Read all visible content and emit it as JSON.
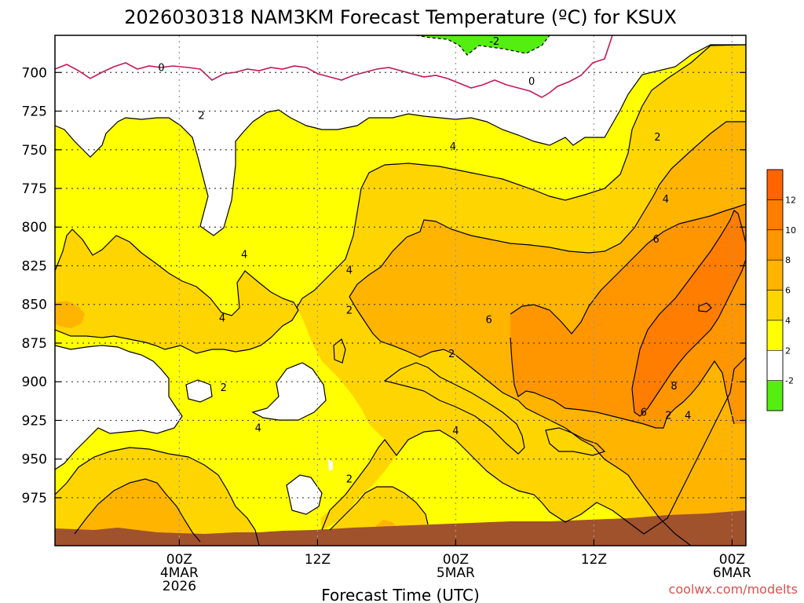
{
  "chart_data": {
    "type": "contour",
    "title": "2026030318 NAM3KM Forecast Temperature (ºC) for KSUX",
    "xlabel": "Forecast Time (UTC)",
    "ylabel": "",
    "credit": "coolwx.com/modelts",
    "y_axis": {
      "reversed": true,
      "ylim": [
        1006,
        676
      ],
      "ticks": [
        700,
        725,
        750,
        775,
        800,
        825,
        850,
        875,
        900,
        925,
        950,
        975
      ]
    },
    "x_axis": {
      "xlim_hours": [
        -9,
        41
      ],
      "ticks": [
        {
          "hour": 0,
          "line1": "00Z",
          "line2": "4MAR",
          "line3": "2026"
        },
        {
          "hour": 10,
          "line1": "12Z",
          "line2": "",
          "line3": ""
        },
        {
          "hour": 20,
          "line1": "00Z",
          "line2": "5MAR",
          "line3": ""
        },
        {
          "hour": 30,
          "line1": "12Z",
          "line2": "",
          "line3": ""
        },
        {
          "hour": 40,
          "line1": "00Z",
          "line2": "6MAR",
          "line3": ""
        }
      ]
    },
    "colorbar": {
      "levels": [
        -4,
        -2,
        2,
        4,
        6,
        8,
        10,
        12,
        14
      ],
      "colors": [
        "#55ee11",
        "#ffffff",
        "#ffff00",
        "#ffd500",
        "#ffb400",
        "#ff9600",
        "#ff7d00",
        "#ff6400"
      ],
      "labels": [
        "-2",
        "2",
        "4",
        "6",
        "8",
        "10",
        "12"
      ]
    },
    "fill_regions": [
      {
        "level": "2-4",
        "color": "#ffff00"
      },
      {
        "level": "4-6",
        "color": "#ffd500"
      },
      {
        "level": "6-8",
        "color": "#ffb400"
      },
      {
        "level": "8-10",
        "color": "#ff9600"
      },
      {
        "level": "below -2",
        "color": "#55ee11"
      }
    ],
    "contour_labels": [
      {
        "text": "0",
        "hour": -1.3,
        "p": 697
      },
      {
        "text": "0",
        "hour": 25.5,
        "p": 706
      },
      {
        "text": "-2",
        "hour": 22.8,
        "p": 680
      },
      {
        "text": "2",
        "hour": 1.6,
        "p": 728
      },
      {
        "text": "2",
        "hour": 34.6,
        "p": 742
      },
      {
        "text": "4",
        "hour": 19.8,
        "p": 748
      },
      {
        "text": "4",
        "hour": 35.2,
        "p": 782
      },
      {
        "text": "6",
        "hour": 34.5,
        "p": 808
      },
      {
        "text": "4",
        "hour": 4.7,
        "p": 818
      },
      {
        "text": "4",
        "hour": 12.3,
        "p": 828
      },
      {
        "text": "4",
        "hour": 3.1,
        "p": 859
      },
      {
        "text": "2",
        "hour": 12.3,
        "p": 854
      },
      {
        "text": "6",
        "hour": 22.4,
        "p": 860
      },
      {
        "text": "2",
        "hour": 19.7,
        "p": 882
      },
      {
        "text": "2",
        "hour": 3.2,
        "p": 904
      },
      {
        "text": "8",
        "hour": 35.8,
        "p": 903
      },
      {
        "text": "6",
        "hour": 33.6,
        "p": 920
      },
      {
        "text": "2",
        "hour": 35.4,
        "p": 922
      },
      {
        "text": "4",
        "hour": 36.8,
        "p": 922
      },
      {
        "text": "4",
        "hour": 5.7,
        "p": 930
      },
      {
        "text": "4",
        "hour": 20.0,
        "p": 932
      },
      {
        "text": "2",
        "hour": 12.3,
        "p": 963
      }
    ],
    "terrain": {
      "color": "#a0522d",
      "label": ""
    },
    "grid": true
  }
}
